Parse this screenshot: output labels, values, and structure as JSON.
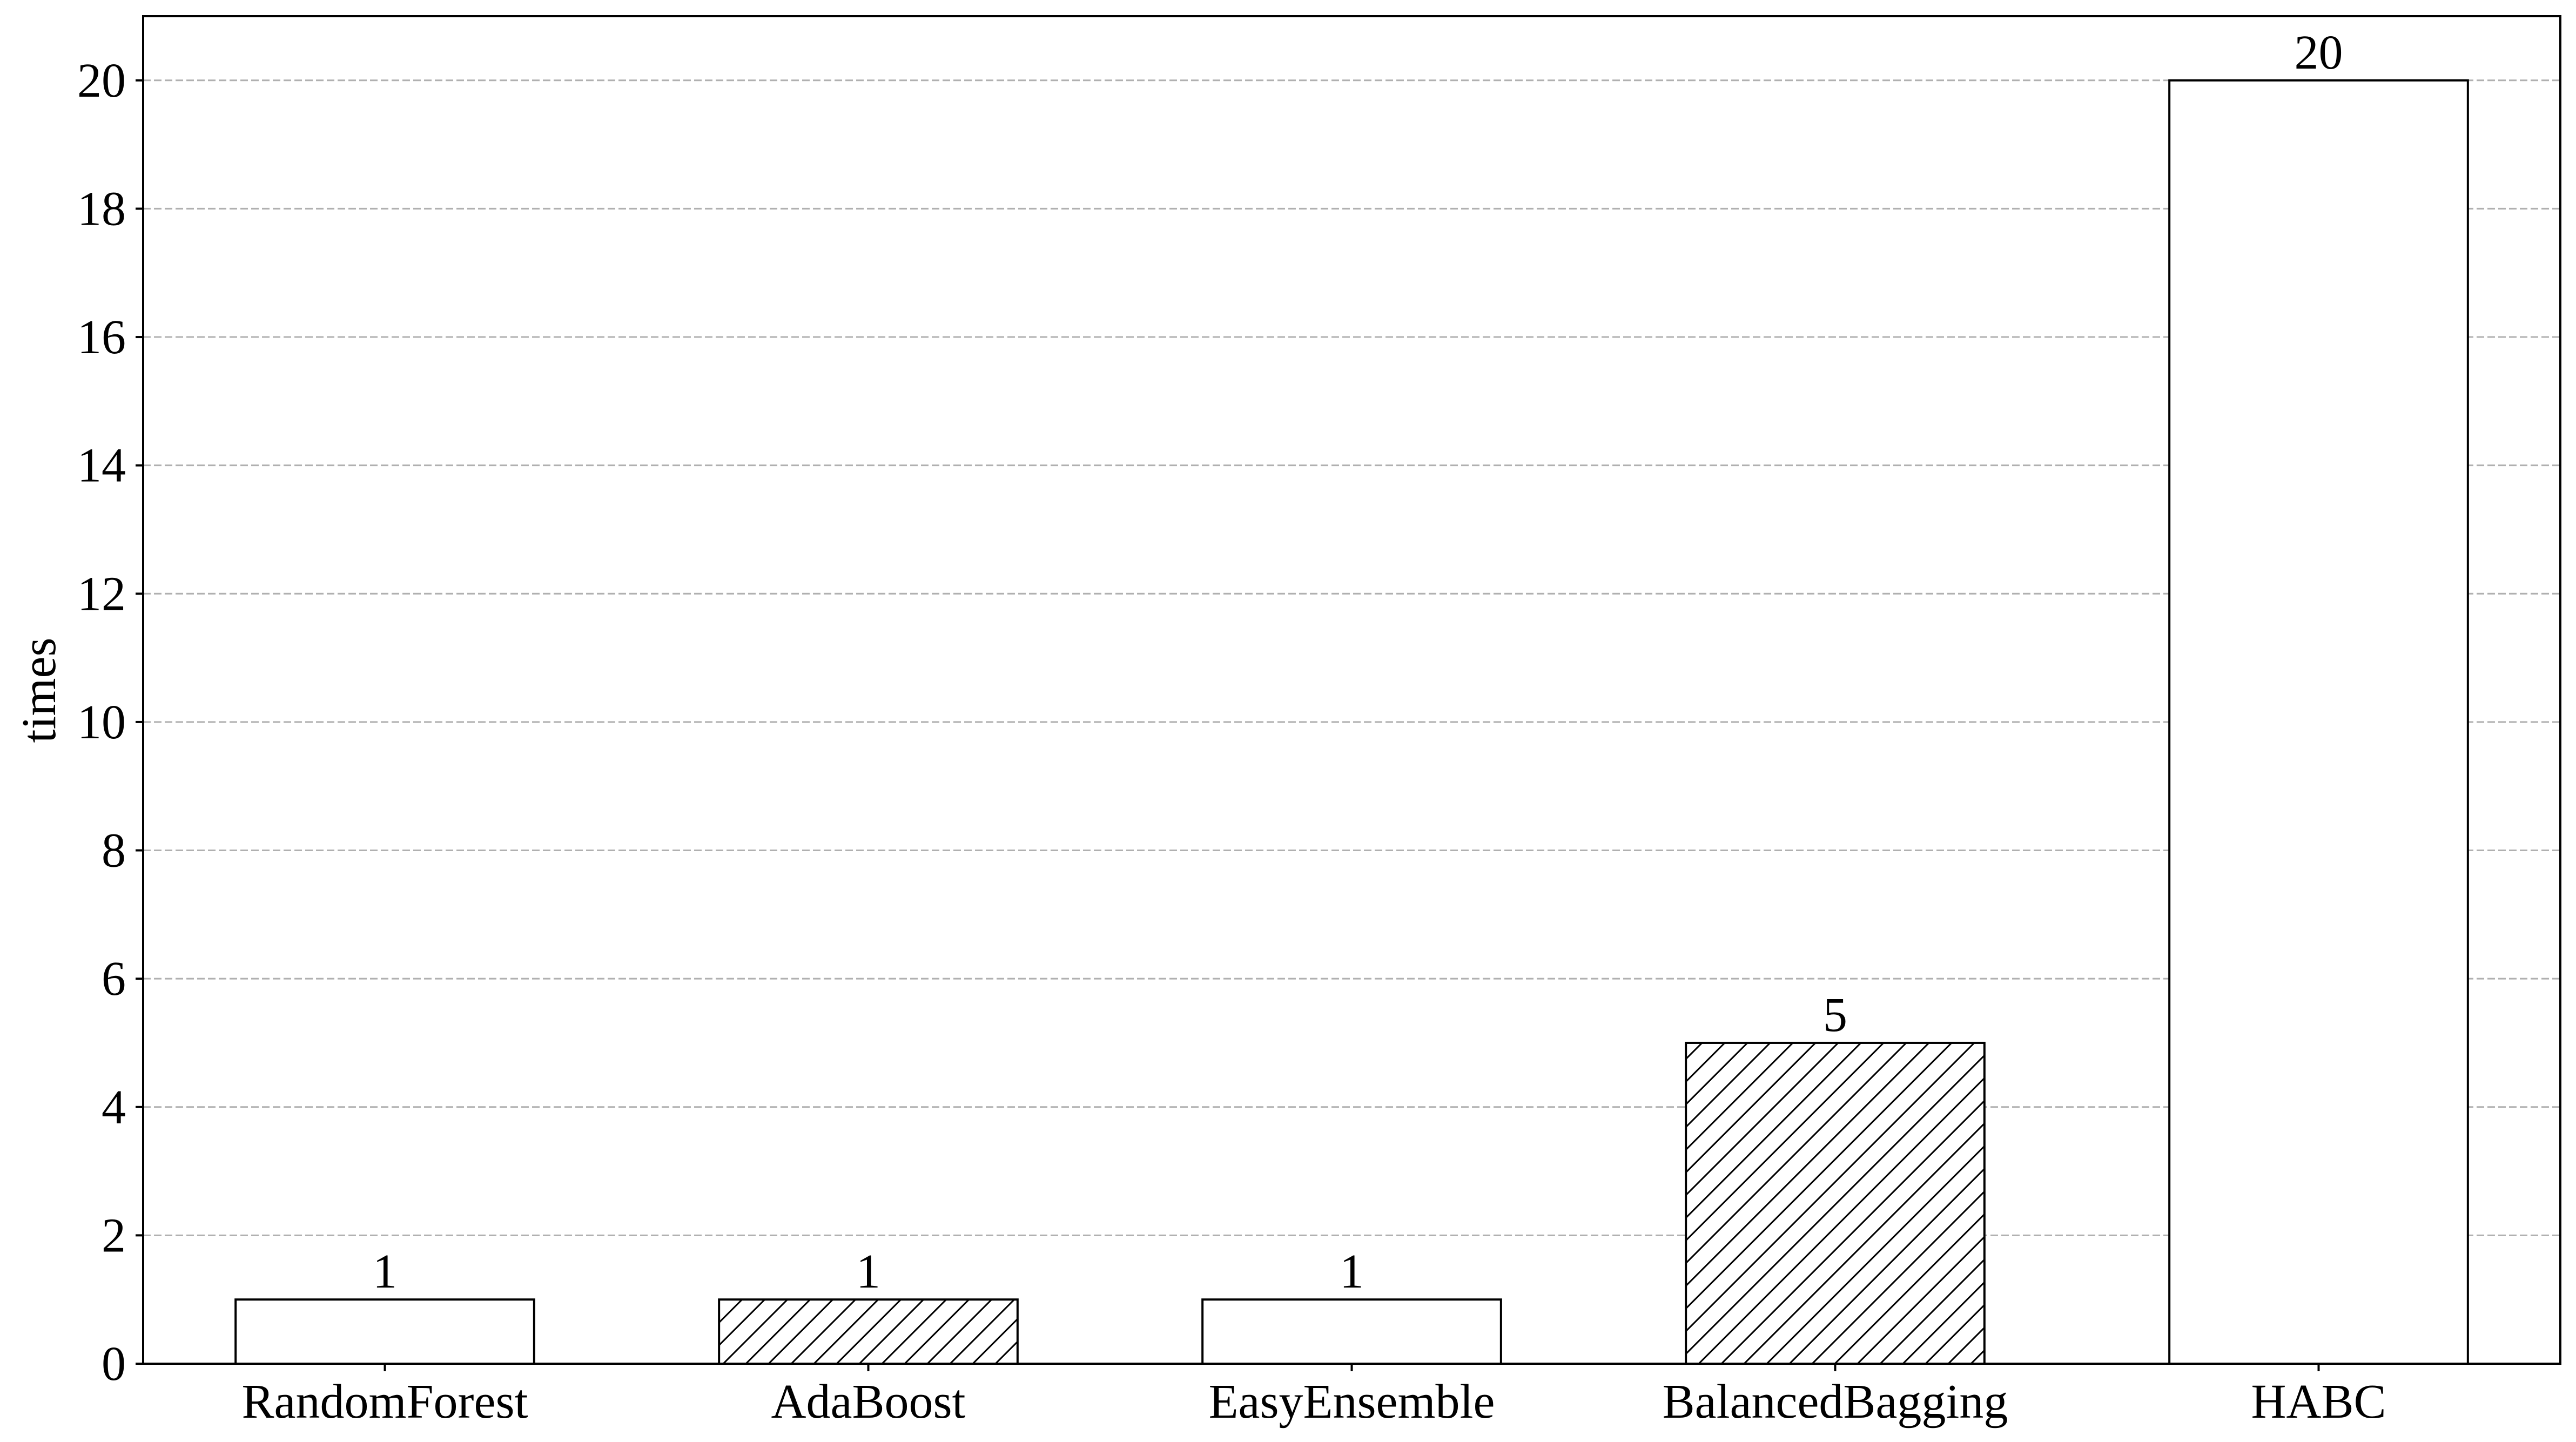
{
  "chart_data": {
    "type": "bar",
    "title": "",
    "xlabel": "",
    "ylabel": "times",
    "categories": [
      "RandomForest",
      "AdaBoost",
      "EasyEnsemble",
      "BalancedBagging",
      "HABC"
    ],
    "values": [
      1,
      1,
      1,
      5,
      20
    ],
    "data_labels": [
      "1",
      "1",
      "1",
      "5",
      "20"
    ],
    "hatched": [
      false,
      true,
      false,
      true,
      false
    ],
    "ylim": [
      0,
      21
    ],
    "yticks": [
      0,
      2,
      4,
      6,
      8,
      10,
      12,
      14,
      16,
      18,
      20
    ],
    "grid": "y-dashed",
    "legend": "none",
    "colors": {
      "bar_fill": "#ffffff",
      "bar_edge": "#000000",
      "grid": "#b0b0b0"
    }
  }
}
